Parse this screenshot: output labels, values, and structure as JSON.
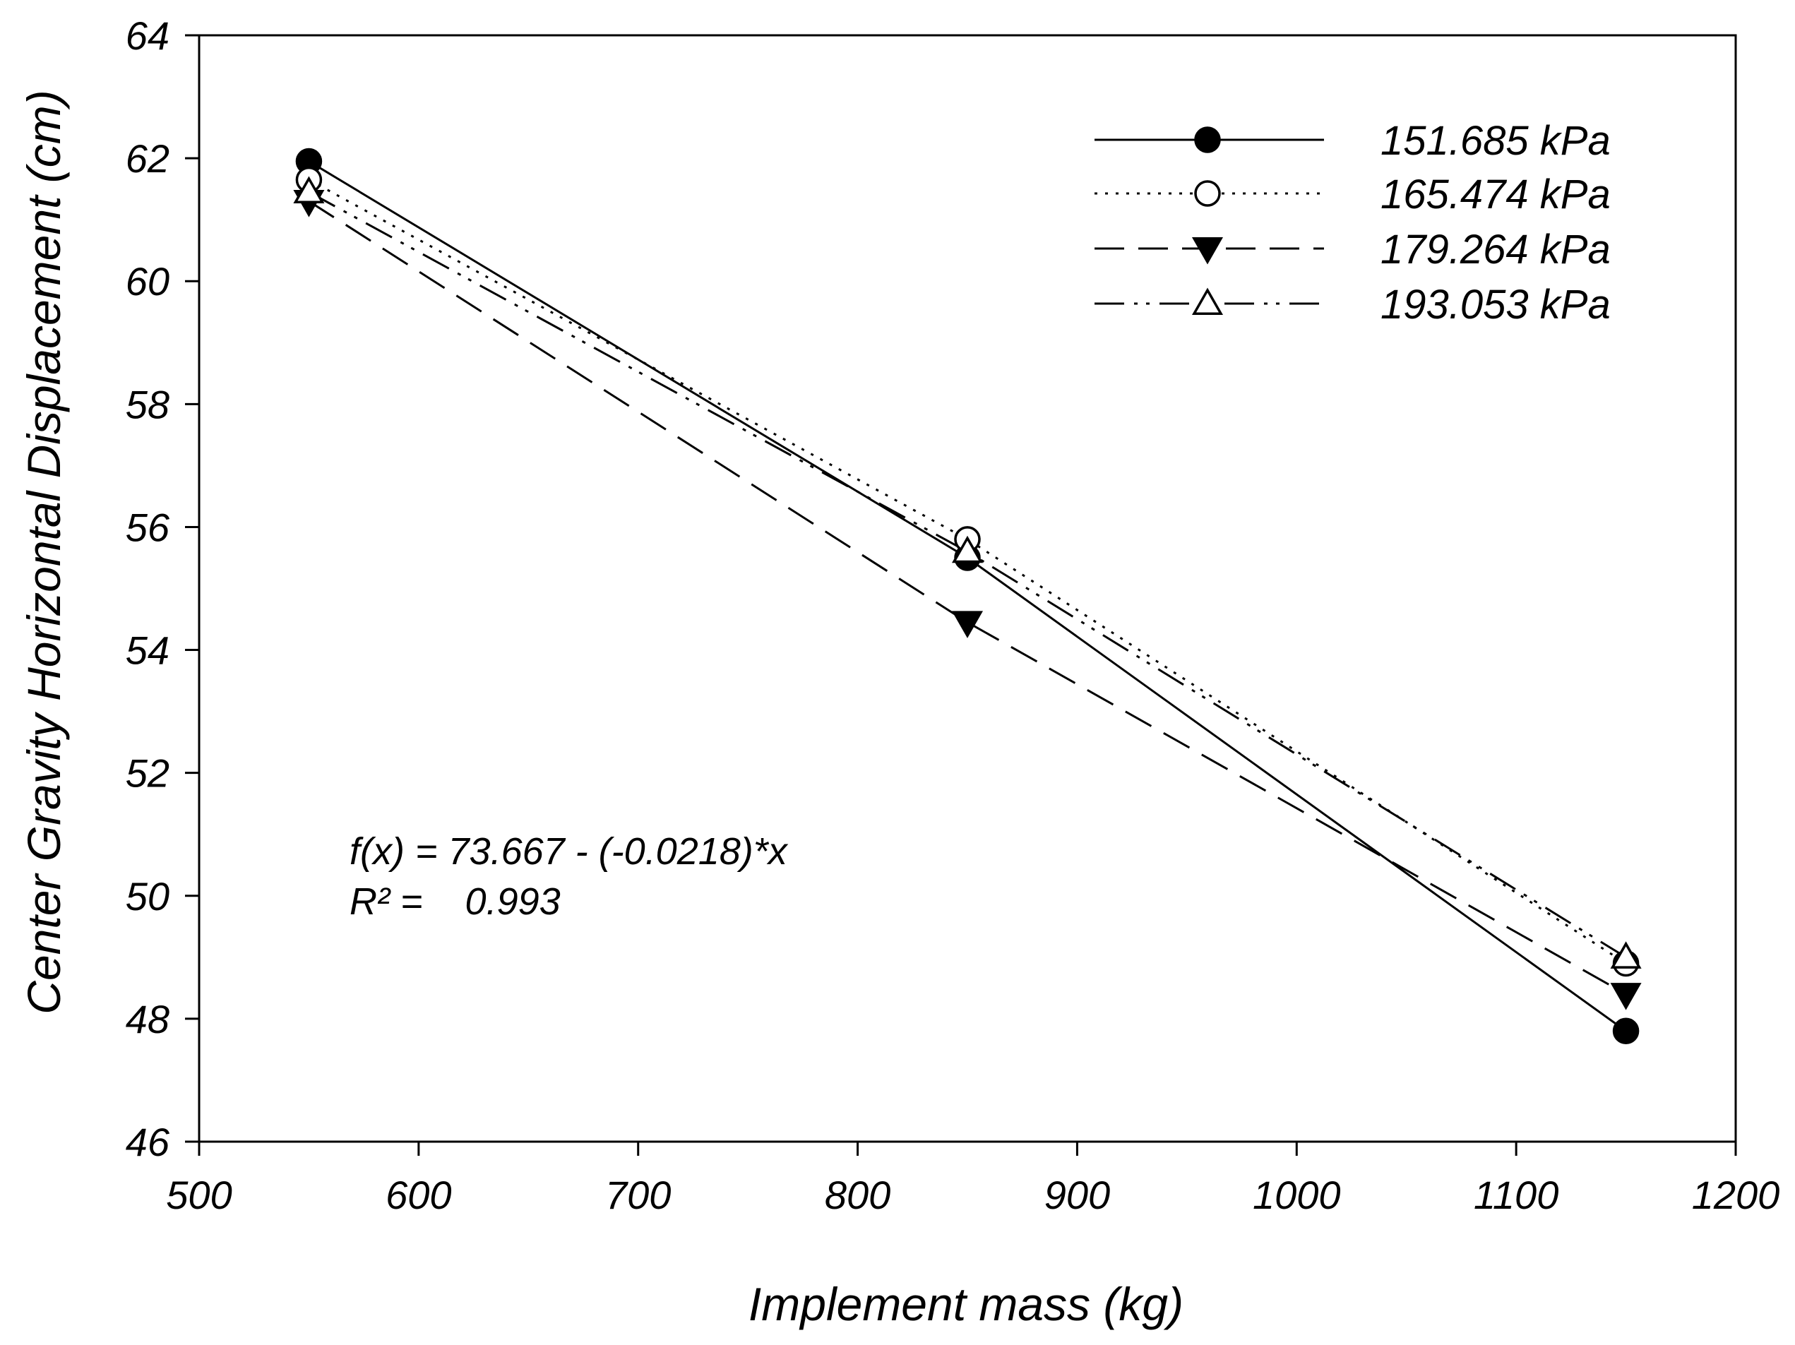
{
  "chart_data": {
    "type": "line",
    "title": "",
    "xlabel": "Implement mass (kg)",
    "ylabel": "Center Gravity Horizontal Displacement (cm)",
    "xlim": [
      500,
      1200
    ],
    "ylim": [
      46,
      64
    ],
    "xticks": [
      500,
      600,
      700,
      800,
      900,
      1000,
      1100,
      1200
    ],
    "yticks": [
      46,
      48,
      50,
      52,
      54,
      56,
      58,
      60,
      62,
      64
    ],
    "grid": false,
    "legend_position": "top-right",
    "x": [
      550,
      850,
      1150
    ],
    "series": [
      {
        "name": "151.685 kPa",
        "values": [
          61.95,
          55.5,
          47.8
        ],
        "marker": "filled-circle",
        "line": "solid"
      },
      {
        "name": "165.474 kPa",
        "values": [
          61.65,
          55.8,
          48.9
        ],
        "marker": "open-circle",
        "line": "dotted"
      },
      {
        "name": "179.264 kPa",
        "values": [
          61.3,
          54.45,
          48.4
        ],
        "marker": "filled-triangle-down",
        "line": "dashed"
      },
      {
        "name": "193.053 kPa",
        "values": [
          61.45,
          55.6,
          49.0
        ],
        "marker": "open-triangle-up",
        "line": "dash-dot-dot"
      }
    ],
    "annotations": [
      "f(x) = 73.667 - (-0.0218)*x",
      "R² =    0.993"
    ]
  }
}
